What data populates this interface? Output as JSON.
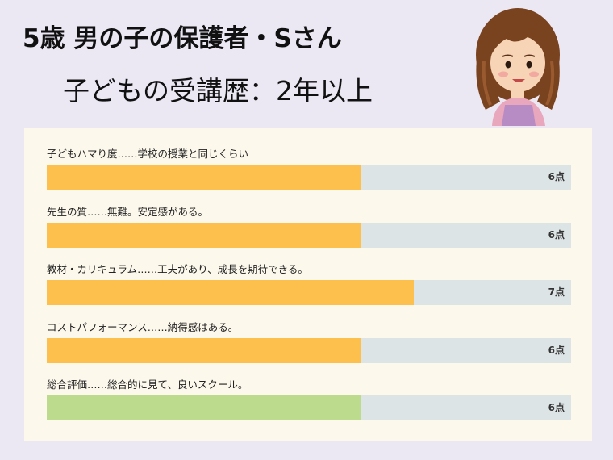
{
  "header": {
    "title": "5歳 男の子の保護者・Sさん",
    "subtitle": "子どもの受講歴：2年以上"
  },
  "avatar": {
    "icon": "woman-illustration-icon"
  },
  "ratings": {
    "max": 10,
    "items": [
      {
        "label": "子どもハマり度……学校の授業と同じくらい",
        "value": 6,
        "score_text": "6点",
        "color": "#fdc04c"
      },
      {
        "label": "先生の質……無難。安定感がある。",
        "value": 6,
        "score_text": "6点",
        "color": "#fdc04c"
      },
      {
        "label": "教材・カリキュラム……工夫があり、成長を期待できる。",
        "value": 7,
        "score_text": "7点",
        "color": "#fdc04c"
      },
      {
        "label": "コストパフォーマンス……納得感はある。",
        "value": 6,
        "score_text": "6点",
        "color": "#fdc04c"
      },
      {
        "label": "総合評価……総合的に見て、良いスクール。",
        "value": 6,
        "score_text": "6点",
        "color": "#bcdb8c"
      }
    ]
  }
}
